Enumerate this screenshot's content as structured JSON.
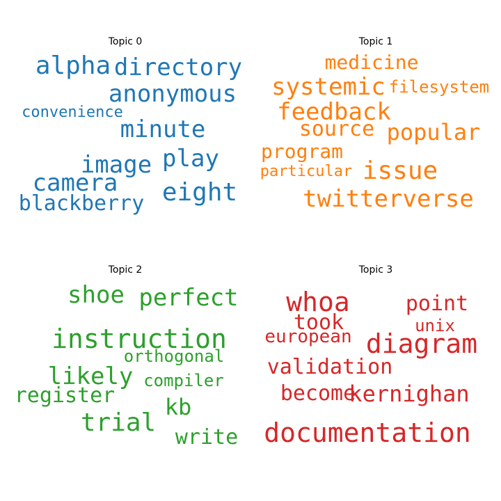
{
  "chart_data": {
    "type": "wordcloud",
    "topics": [
      {
        "title": "Topic 0",
        "color": "#1f77b4",
        "words": [
          "alpha",
          "directory",
          "anonymous",
          "convenience",
          "minute",
          "image",
          "play",
          "camera",
          "eight",
          "blackberry"
        ]
      },
      {
        "title": "Topic 1",
        "color": "#ff7f0e",
        "words": [
          "medicine",
          "systemic",
          "filesystem",
          "feedback",
          "source",
          "popular",
          "program",
          "particular",
          "issue",
          "twitterverse"
        ]
      },
      {
        "title": "Topic 2",
        "color": "#2ca02c",
        "words": [
          "shoe",
          "perfect",
          "instruction",
          "orthogonal",
          "likely",
          "compiler",
          "register",
          "kb",
          "trial",
          "write"
        ]
      },
      {
        "title": "Topic 3",
        "color": "#d62728",
        "words": [
          "whoa",
          "point",
          "took",
          "unix",
          "european",
          "diagram",
          "validation",
          "become",
          "kernighan",
          "documentation"
        ]
      }
    ]
  }
}
